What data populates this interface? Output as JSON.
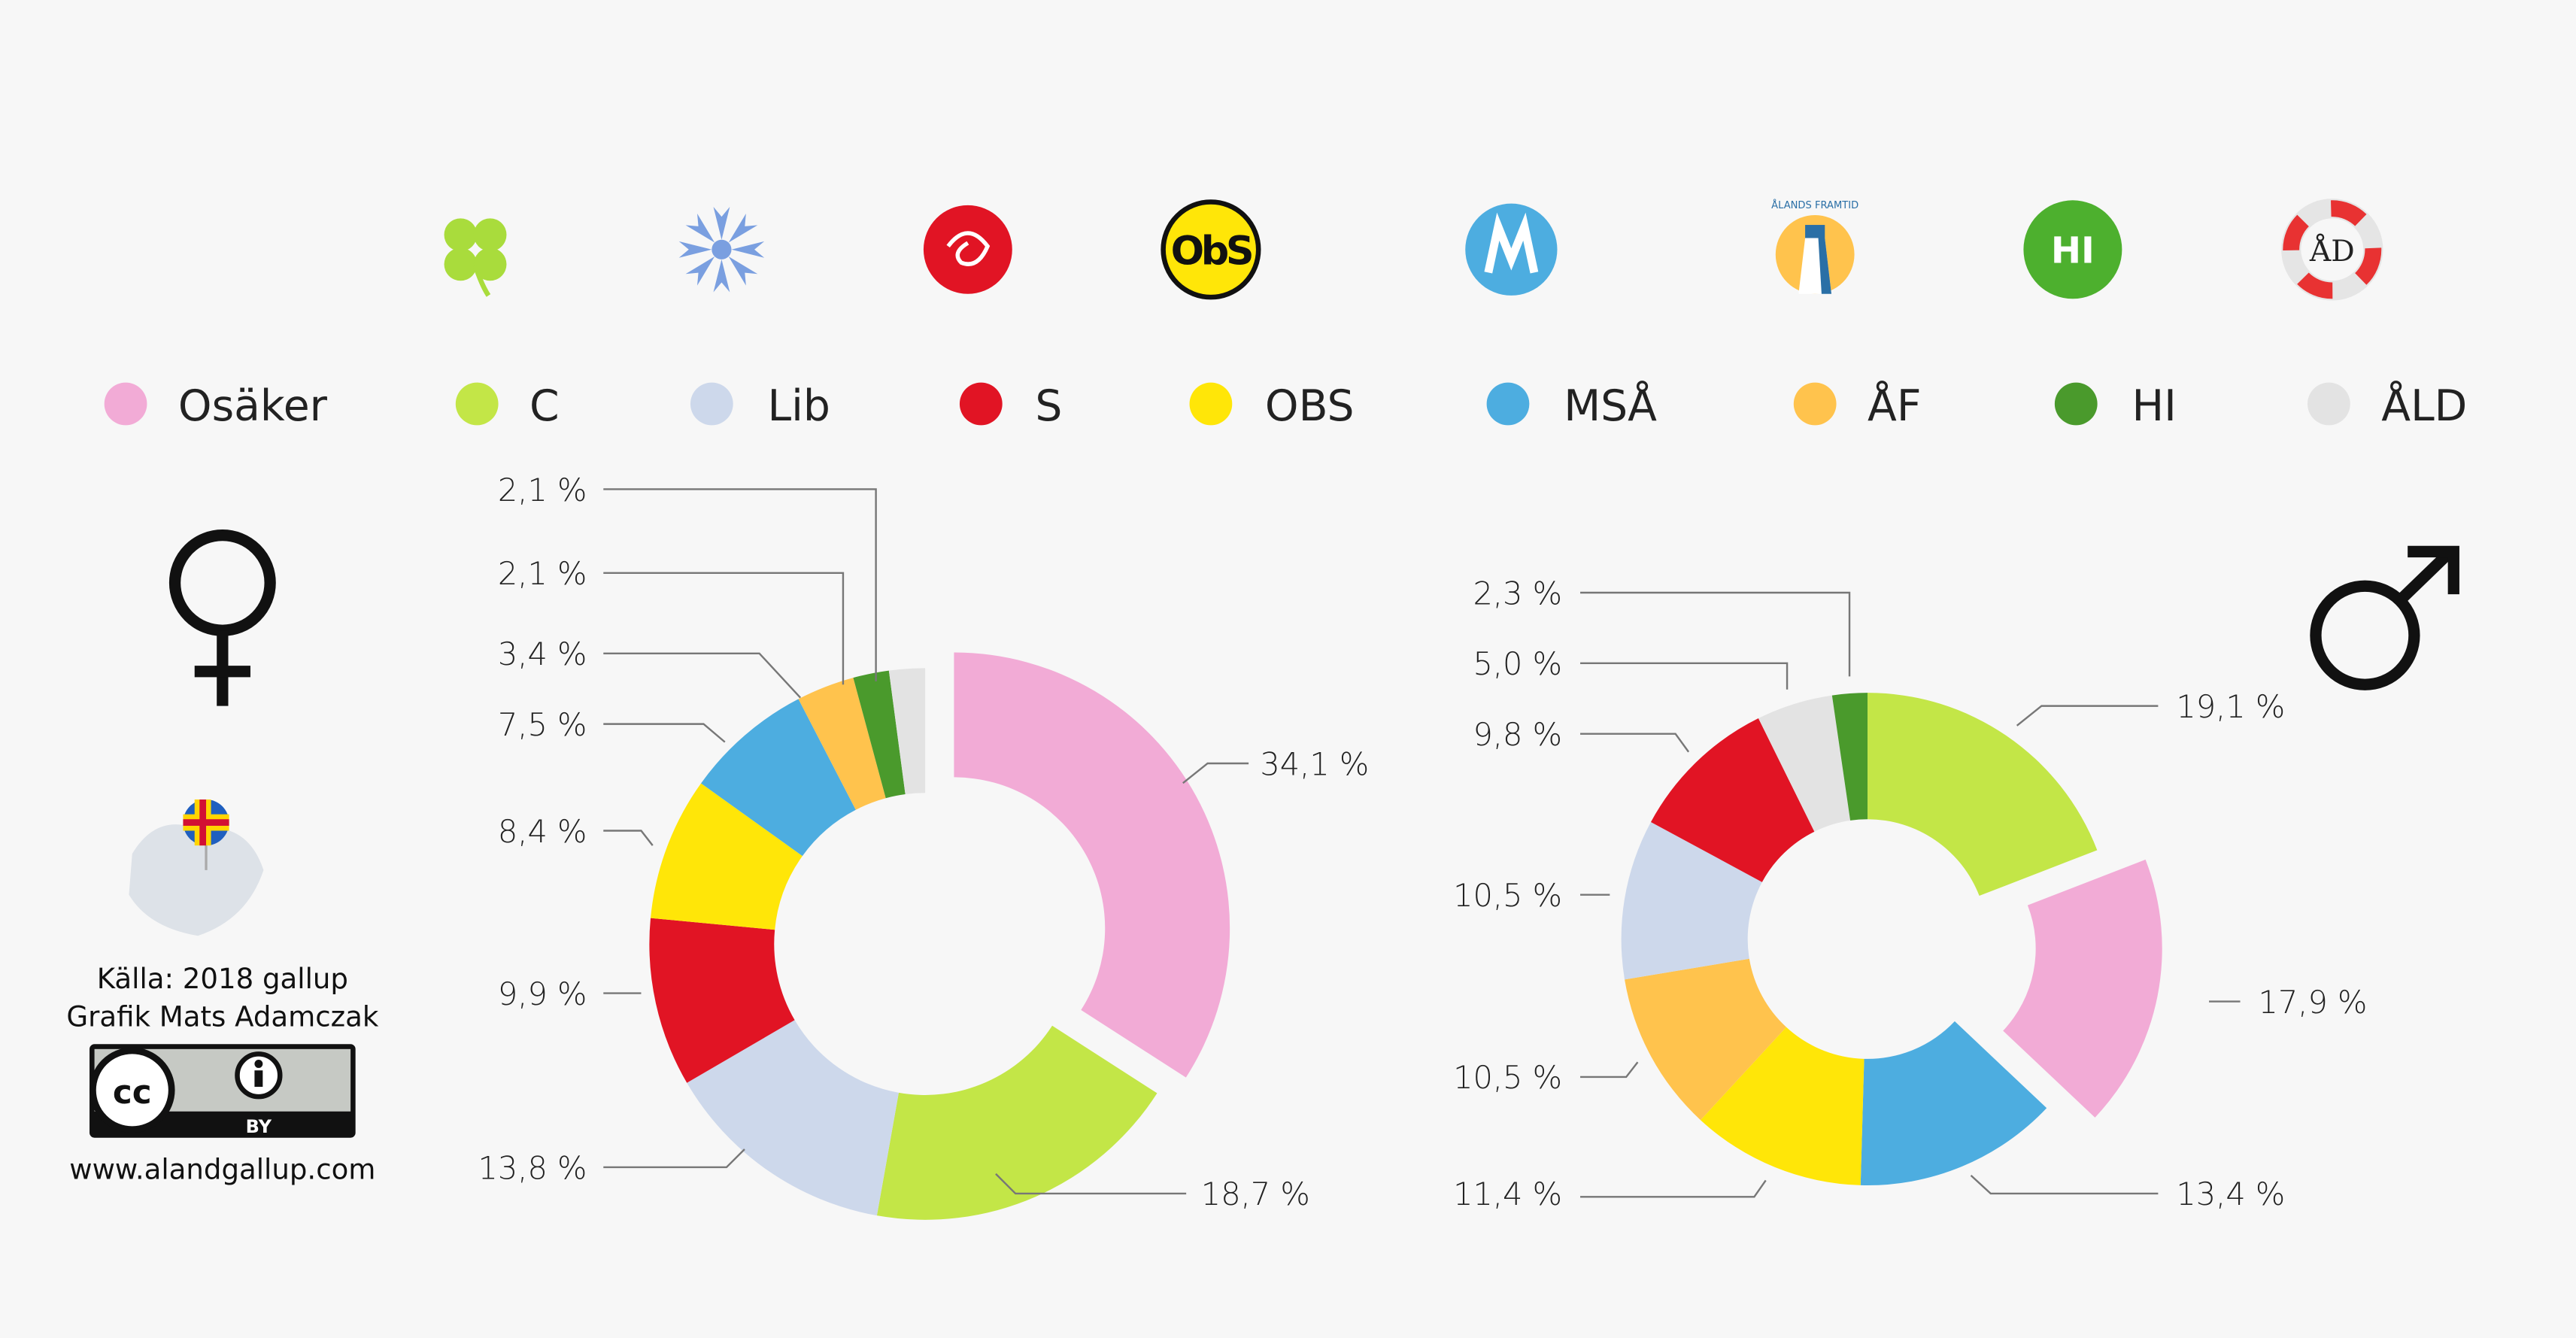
{
  "legend": [
    {
      "label": "Osäker",
      "color": "#f2abd6"
    },
    {
      "label": "C",
      "color": "#c3e647"
    },
    {
      "label": "Lib",
      "color": "#cdd8eb"
    },
    {
      "label": "S",
      "color": "#e11424"
    },
    {
      "label": "OBS",
      "color": "#ffe608"
    },
    {
      "label": "MSÅ",
      "color": "#4dade0"
    },
    {
      "label": "ÅF",
      "color": "#ffc34d"
    },
    {
      "label": "HI",
      "color": "#4a9a2c"
    },
    {
      "label": "ÅLD",
      "color": "#e3e3e3"
    }
  ],
  "logos": {
    "obs": "ObS",
    "framtid": "ÅLANDS FRAMTID",
    "hi": "HI",
    "ald": "ÅD"
  },
  "credits": {
    "source": "Källa: 2018 gallup",
    "author": "Grafik Mats Adamczak",
    "license_cc": "cc",
    "license_by": "BY",
    "website": "www.alandgallup.com"
  },
  "chart_data": [
    {
      "type": "pie",
      "title": "Women",
      "symbol": "♀",
      "categories": [
        "Osäker",
        "C",
        "Lib",
        "S",
        "OBS",
        "MSÅ",
        "ÅF",
        "HI",
        "ÅLD"
      ],
      "values": [
        34.1,
        18.7,
        13.8,
        9.9,
        8.4,
        7.5,
        3.4,
        2.1,
        2.1
      ],
      "value_labels": [
        "34,1 %",
        "18,7 %",
        "13,8 %",
        "9,9 %",
        "8,4 %",
        "7,5 %",
        "3,4 %",
        "2,1 %",
        "2,1 %"
      ],
      "exploded": "Osäker"
    },
    {
      "type": "pie",
      "title": "Men",
      "symbol": "♂",
      "categories": [
        "C",
        "Osäker",
        "MSÅ",
        "OBS",
        "ÅF",
        "Lib",
        "S",
        "ÅLD",
        "HI"
      ],
      "values": [
        19.1,
        17.9,
        13.4,
        11.4,
        10.5,
        10.5,
        9.8,
        5.0,
        2.3
      ],
      "value_labels": [
        "19,1 %",
        "17,9 %",
        "13,4 %",
        "11,4 %",
        "10,5 %",
        "10,5 %",
        "9,8 %",
        "5,0 %",
        "2,3 %"
      ],
      "exploded": "Osäker"
    }
  ]
}
